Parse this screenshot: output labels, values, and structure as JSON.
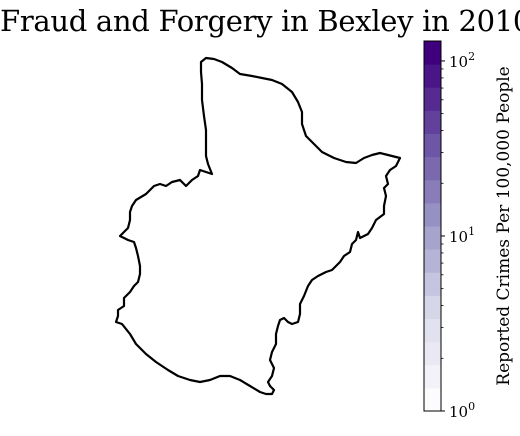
{
  "title": "Fraud and Forgery in Bexley in 2010",
  "colorbar": {
    "label": "Reported Crimes Per 100,000 People",
    "scale": "log",
    "range": [
      1,
      130
    ],
    "ticks": [
      {
        "base": "10",
        "exp": "0",
        "value": 1
      },
      {
        "base": "10",
        "exp": "1",
        "value": 10
      },
      {
        "base": "10",
        "exp": "2",
        "value": 100
      }
    ],
    "colormap": "Purples",
    "levels": 16
  },
  "map": {
    "region": "Bexley",
    "fill": "#ffffff",
    "outline": "#000000"
  }
}
